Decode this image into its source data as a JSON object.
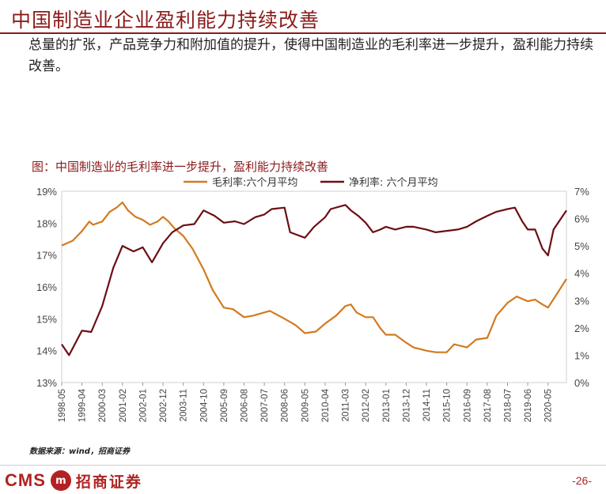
{
  "page": {
    "title": "中国制造业企业盈利能力持续改善",
    "intro": "总量的扩张，产品竞争力和附加值的提升，使得中国制造业的毛利率进一步提升，盈利能力持续改善。",
    "chart_caption": "图：中国制造业的毛利率进一步提升，盈利能力持续改善",
    "source": "数据来源：wind，招商证券",
    "logo_cms": "CMS",
    "logo_name": "招商证券",
    "page_number": "-26-",
    "colors": {
      "brand": "#8b1a1a",
      "gross": "#d37a1f",
      "net": "#6b0f14"
    }
  },
  "chart_data": {
    "type": "line",
    "x_tick_labels": [
      "1998-05",
      "1999-04",
      "2000-03",
      "2001-02",
      "2002-01",
      "2002-12",
      "2003-11",
      "2004-10",
      "2005-09",
      "2006-08",
      "2007-07",
      "2008-06",
      "2009-05",
      "2010-04",
      "2011-03",
      "2012-02",
      "2013-01",
      "2013-12",
      "2014-11",
      "2015-10",
      "2016-09",
      "2017-08",
      "2018-07",
      "2019-06",
      "2020-05"
    ],
    "y_left": {
      "ticks": [
        "13%",
        "14%",
        "15%",
        "16%",
        "17%",
        "18%",
        "19%"
      ],
      "range": [
        13,
        19
      ]
    },
    "y_right": {
      "ticks": [
        "0%",
        "1%",
        "2%",
        "3%",
        "4%",
        "5%",
        "6%",
        "7%"
      ],
      "range": [
        0,
        7
      ]
    },
    "series": [
      {
        "name": "毛利率:六个月平均",
        "axis": "left",
        "color": "#d37a1f",
        "points": [
          [
            "1998-05",
            17.3
          ],
          [
            "1998-11",
            17.45
          ],
          [
            "1999-04",
            17.75
          ],
          [
            "1999-08",
            18.05
          ],
          [
            "1999-10",
            17.95
          ],
          [
            "2000-03",
            18.05
          ],
          [
            "2000-07",
            18.35
          ],
          [
            "2000-11",
            18.5
          ],
          [
            "2001-02",
            18.65
          ],
          [
            "2001-05",
            18.4
          ],
          [
            "2001-09",
            18.2
          ],
          [
            "2002-01",
            18.1
          ],
          [
            "2002-05",
            17.95
          ],
          [
            "2002-09",
            18.05
          ],
          [
            "2002-12",
            18.2
          ],
          [
            "2003-03",
            18.05
          ],
          [
            "2003-06",
            17.85
          ],
          [
            "2003-11",
            17.6
          ],
          [
            "2004-04",
            17.2
          ],
          [
            "2004-10",
            16.55
          ],
          [
            "2005-03",
            15.9
          ],
          [
            "2005-09",
            15.35
          ],
          [
            "2006-02",
            15.3
          ],
          [
            "2006-08",
            15.05
          ],
          [
            "2007-01",
            15.1
          ],
          [
            "2007-07",
            15.2
          ],
          [
            "2007-10",
            15.25
          ],
          [
            "2008-06",
            15.0
          ],
          [
            "2008-12",
            14.8
          ],
          [
            "2009-05",
            14.55
          ],
          [
            "2009-11",
            14.6
          ],
          [
            "2010-04",
            14.85
          ],
          [
            "2010-10",
            15.1
          ],
          [
            "2011-03",
            15.4
          ],
          [
            "2011-06",
            15.45
          ],
          [
            "2011-09",
            15.2
          ],
          [
            "2012-02",
            15.05
          ],
          [
            "2012-06",
            15.05
          ],
          [
            "2012-10",
            14.7
          ],
          [
            "2013-01",
            14.5
          ],
          [
            "2013-06",
            14.5
          ],
          [
            "2013-12",
            14.25
          ],
          [
            "2014-04",
            14.1
          ],
          [
            "2014-11",
            14.0
          ],
          [
            "2015-04",
            13.95
          ],
          [
            "2015-10",
            13.95
          ],
          [
            "2016-02",
            14.2
          ],
          [
            "2016-09",
            14.1
          ],
          [
            "2017-02",
            14.35
          ],
          [
            "2017-08",
            14.4
          ],
          [
            "2018-01",
            15.1
          ],
          [
            "2018-07",
            15.5
          ],
          [
            "2018-12",
            15.7
          ],
          [
            "2019-06",
            15.55
          ],
          [
            "2019-10",
            15.6
          ],
          [
            "2020-02",
            15.45
          ],
          [
            "2020-05",
            15.35
          ],
          [
            "2020-10",
            15.8
          ],
          [
            "2021-03",
            16.25
          ]
        ]
      },
      {
        "name": "净利率: 六个月平均",
        "axis": "right",
        "color": "#6b0f14",
        "points": [
          [
            "1998-05",
            1.4
          ],
          [
            "1998-09",
            1.0
          ],
          [
            "1999-04",
            1.9
          ],
          [
            "1999-09",
            1.85
          ],
          [
            "2000-03",
            2.8
          ],
          [
            "2000-09",
            4.2
          ],
          [
            "2001-02",
            5.0
          ],
          [
            "2001-08",
            4.8
          ],
          [
            "2002-01",
            4.95
          ],
          [
            "2002-06",
            4.4
          ],
          [
            "2002-12",
            5.1
          ],
          [
            "2003-05",
            5.5
          ],
          [
            "2003-11",
            5.75
          ],
          [
            "2004-05",
            5.8
          ],
          [
            "2004-10",
            6.3
          ],
          [
            "2005-04",
            6.1
          ],
          [
            "2005-09",
            5.85
          ],
          [
            "2006-03",
            5.9
          ],
          [
            "2006-08",
            5.8
          ],
          [
            "2007-02",
            6.05
          ],
          [
            "2007-07",
            6.15
          ],
          [
            "2007-11",
            6.35
          ],
          [
            "2008-06",
            6.4
          ],
          [
            "2008-09",
            5.5
          ],
          [
            "2009-05",
            5.3
          ],
          [
            "2009-10",
            5.7
          ],
          [
            "2010-04",
            6.05
          ],
          [
            "2010-07",
            6.35
          ],
          [
            "2011-03",
            6.5
          ],
          [
            "2011-06",
            6.3
          ],
          [
            "2011-10",
            6.1
          ],
          [
            "2012-02",
            5.85
          ],
          [
            "2012-06",
            5.5
          ],
          [
            "2012-10",
            5.6
          ],
          [
            "2013-01",
            5.7
          ],
          [
            "2013-06",
            5.6
          ],
          [
            "2013-12",
            5.7
          ],
          [
            "2014-04",
            5.7
          ],
          [
            "2014-11",
            5.6
          ],
          [
            "2015-04",
            5.5
          ],
          [
            "2015-10",
            5.55
          ],
          [
            "2016-04",
            5.6
          ],
          [
            "2016-09",
            5.7
          ],
          [
            "2017-02",
            5.9
          ],
          [
            "2017-08",
            6.1
          ],
          [
            "2018-01",
            6.25
          ],
          [
            "2018-07",
            6.35
          ],
          [
            "2018-11",
            6.4
          ],
          [
            "2019-03",
            5.9
          ],
          [
            "2019-06",
            5.6
          ],
          [
            "2019-10",
            5.6
          ],
          [
            "2020-02",
            4.9
          ],
          [
            "2020-05",
            4.65
          ],
          [
            "2020-08",
            5.6
          ],
          [
            "2021-03",
            6.3
          ]
        ]
      }
    ],
    "legend_placement": "top-center",
    "grid": false
  }
}
